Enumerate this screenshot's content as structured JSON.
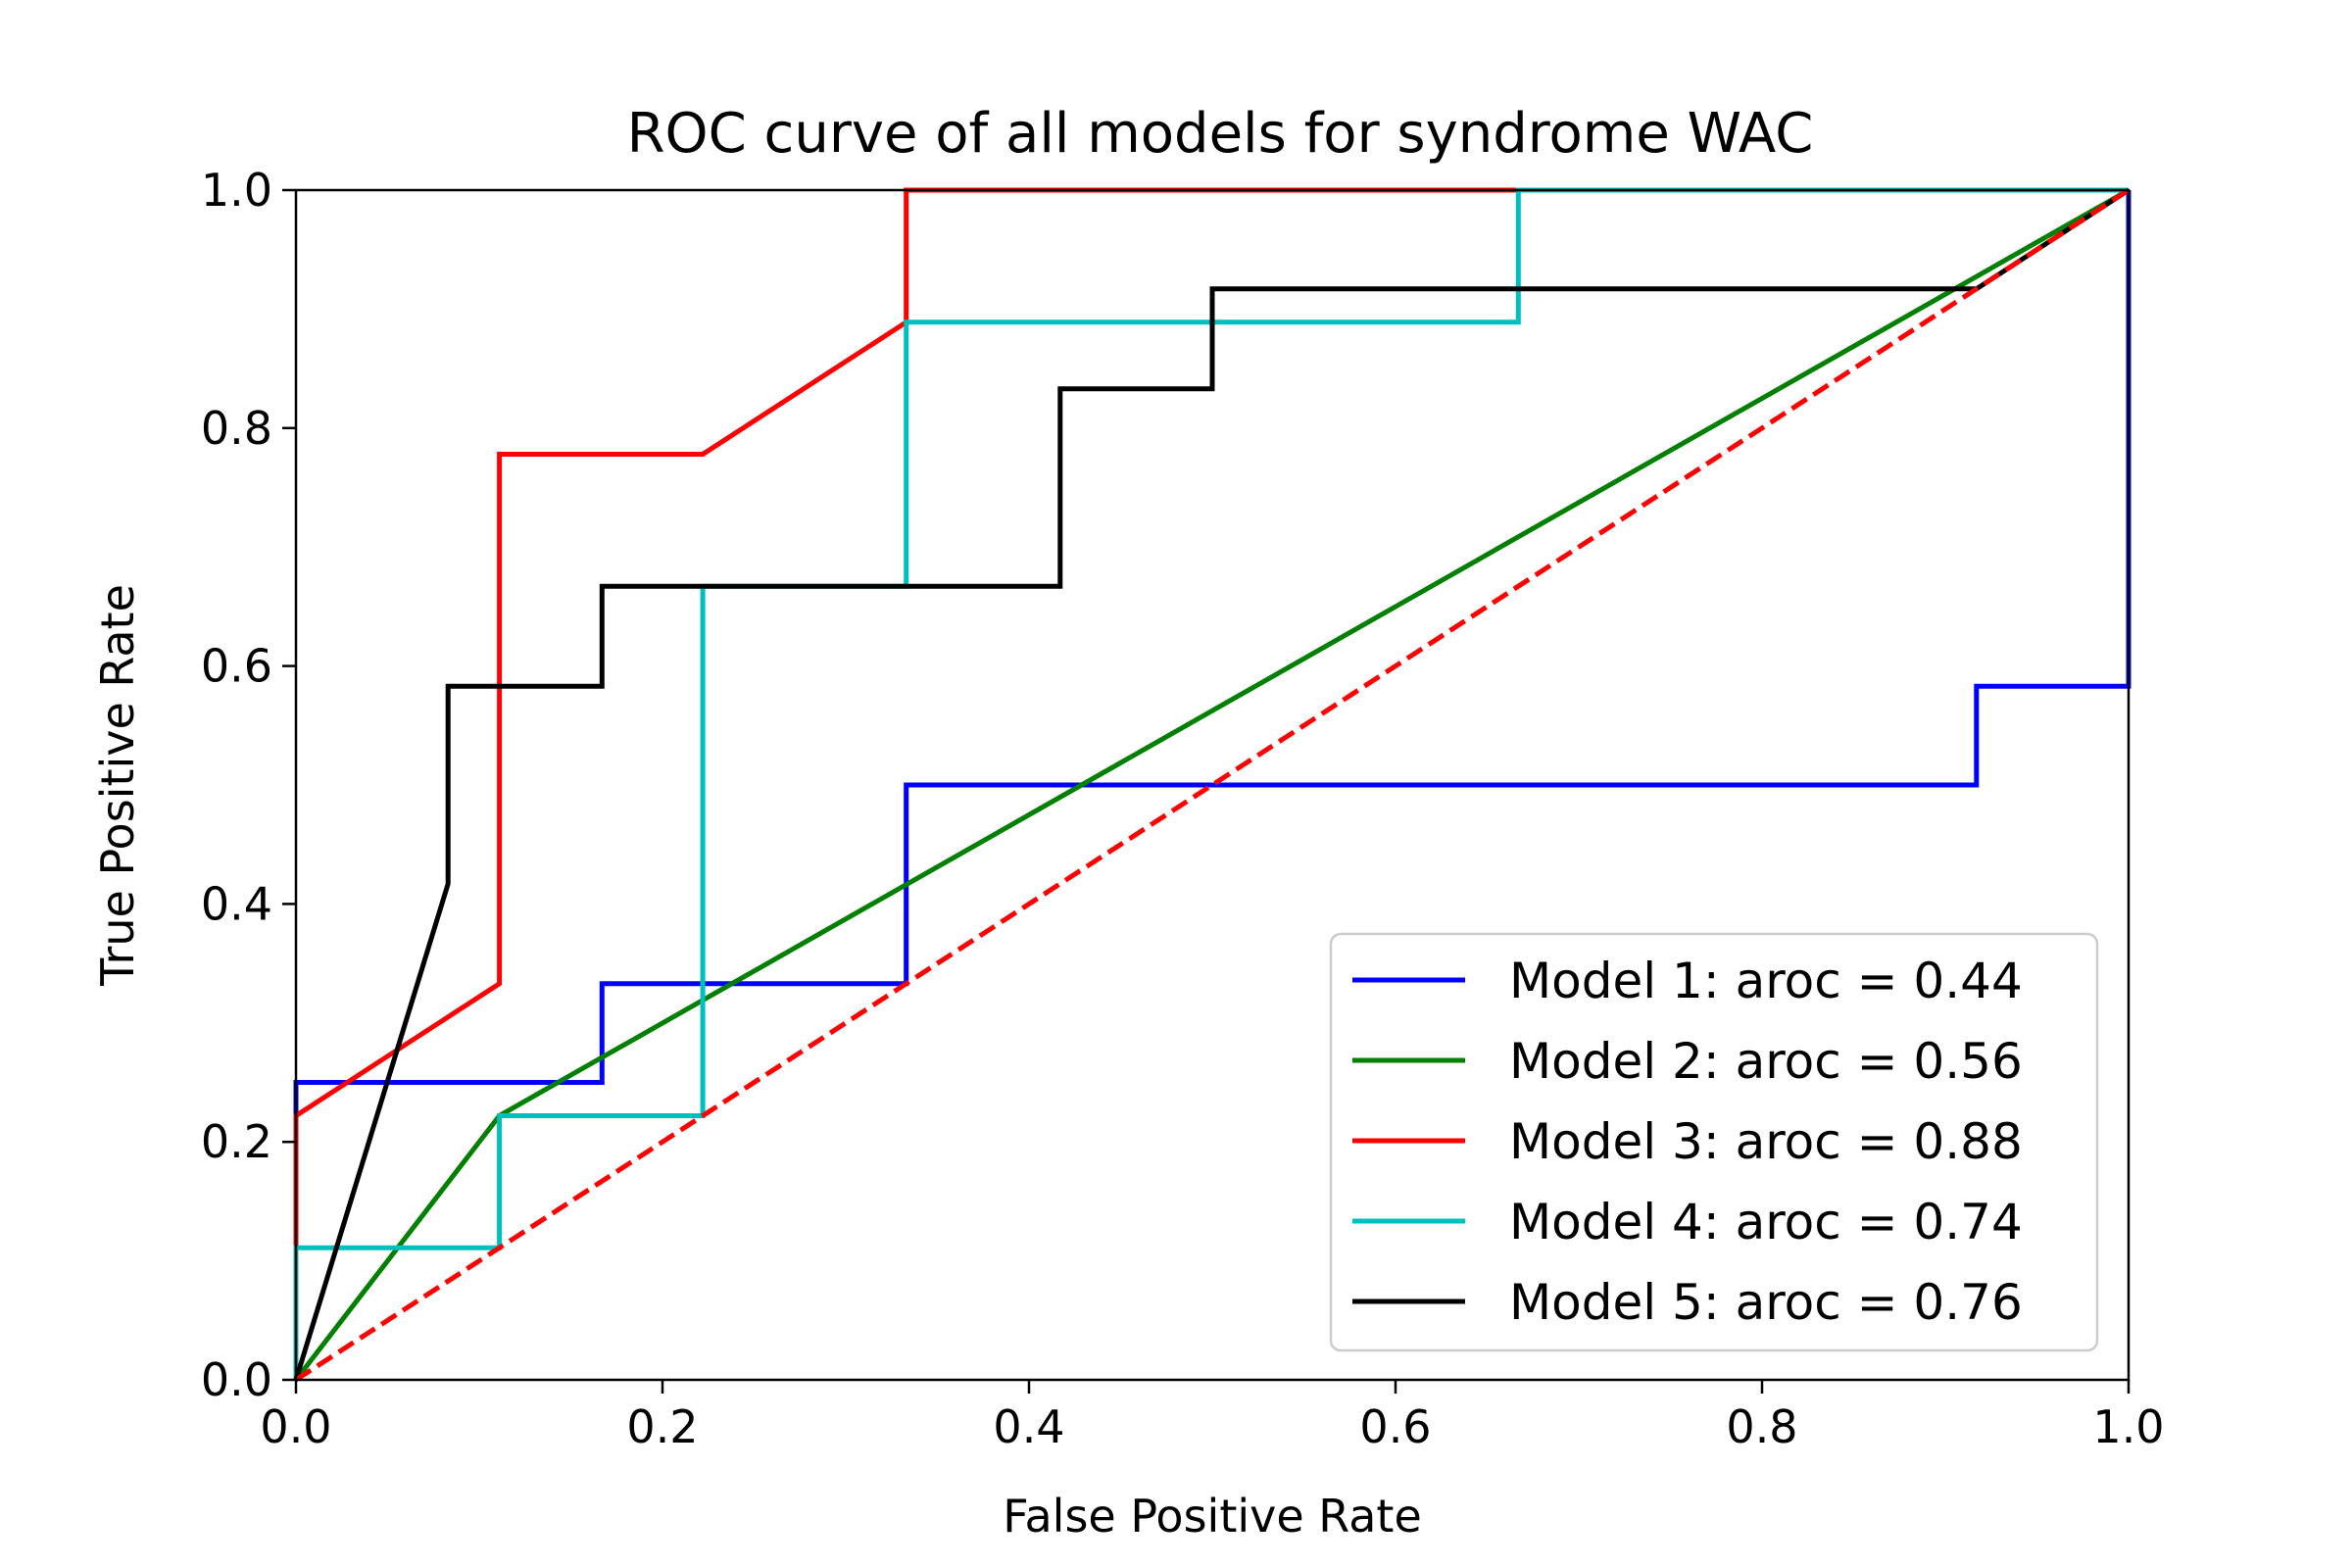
{
  "chart_data": {
    "type": "line",
    "title": "ROC curve of all models for syndrome WAC",
    "xlabel": "False Positive Rate",
    "ylabel": "True Positive Rate",
    "xlim": [
      0.0,
      1.0
    ],
    "ylim": [
      0.0,
      1.0
    ],
    "xticks": [
      "0.0",
      "0.2",
      "0.4",
      "0.6",
      "0.8",
      "1.0"
    ],
    "yticks": [
      "0.0",
      "0.2",
      "0.4",
      "0.6",
      "0.8",
      "1.0"
    ],
    "grid": false,
    "legend_position": "lower-right",
    "series": [
      {
        "name": "Model 1: aroc = 0.44",
        "color": "#0000ff",
        "x": [
          0.0,
          0.0,
          0.167,
          0.167,
          0.333,
          0.333,
          0.917,
          0.917,
          1.0,
          1.0
        ],
        "y": [
          0.0,
          0.25,
          0.25,
          0.333,
          0.333,
          0.5,
          0.5,
          0.583,
          0.583,
          1.0
        ]
      },
      {
        "name": "Model 2: aroc = 0.56",
        "color": "#008000",
        "x": [
          0.0,
          0.111,
          1.0
        ],
        "y": [
          0.0,
          0.222,
          1.0
        ]
      },
      {
        "name": "Model 3: aroc = 0.88",
        "color": "#ff0000",
        "x": [
          0.0,
          0.0,
          0.111,
          0.111,
          0.222,
          0.333,
          0.333,
          1.0
        ],
        "y": [
          0.0,
          0.222,
          0.333,
          0.778,
          0.778,
          0.889,
          1.0,
          1.0
        ]
      },
      {
        "name": "Model 4: aroc = 0.74",
        "color": "#00bfbf",
        "x": [
          0.0,
          0.0,
          0.111,
          0.111,
          0.222,
          0.222,
          0.333,
          0.333,
          0.667,
          0.667,
          1.0
        ],
        "y": [
          0.0,
          0.111,
          0.111,
          0.222,
          0.222,
          0.667,
          0.667,
          0.889,
          0.889,
          1.0,
          1.0
        ]
      },
      {
        "name": "Model 5: aroc = 0.76",
        "color": "#000000",
        "x": [
          0.0,
          0.083,
          0.083,
          0.167,
          0.167,
          0.417,
          0.417,
          0.5,
          0.5,
          0.917,
          1.0
        ],
        "y": [
          0.0,
          0.417,
          0.583,
          0.583,
          0.667,
          0.667,
          0.833,
          0.833,
          0.917,
          0.917,
          1.0
        ]
      }
    ],
    "reference_line": {
      "color": "#ff0000",
      "style": "dashed",
      "x": [
        0.0,
        1.0
      ],
      "y": [
        0.0,
        1.0
      ]
    }
  }
}
